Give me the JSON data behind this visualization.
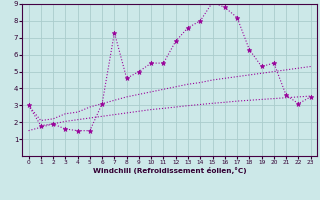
{
  "x": [
    0,
    1,
    2,
    3,
    4,
    5,
    6,
    7,
    8,
    9,
    10,
    11,
    12,
    13,
    14,
    15,
    16,
    17,
    18,
    19,
    20,
    21,
    22,
    23
  ],
  "line1_y": [
    3.0,
    1.8,
    1.9,
    1.6,
    1.5,
    1.5,
    3.1,
    7.3,
    4.6,
    5.0,
    5.5,
    5.5,
    6.8,
    7.6,
    8.0,
    9.1,
    8.8,
    8.2,
    6.3,
    5.3,
    5.5,
    3.6,
    3.1,
    3.5
  ],
  "line2_y": [
    3.0,
    2.1,
    2.2,
    2.5,
    2.6,
    2.9,
    3.1,
    3.3,
    3.5,
    3.65,
    3.8,
    3.95,
    4.1,
    4.25,
    4.35,
    4.5,
    4.6,
    4.7,
    4.8,
    4.9,
    5.0,
    5.1,
    5.2,
    5.3
  ],
  "line3_y": [
    1.5,
    1.7,
    1.9,
    2.05,
    2.15,
    2.25,
    2.35,
    2.45,
    2.55,
    2.65,
    2.75,
    2.82,
    2.9,
    2.98,
    3.05,
    3.12,
    3.18,
    3.25,
    3.3,
    3.35,
    3.4,
    3.45,
    3.5,
    3.55
  ],
  "line_color": "#990099",
  "bg_color": "#cce8e8",
  "grid_color": "#aacccc",
  "xlabel": "Windchill (Refroidissement éolien,°C)",
  "ylim": [
    0,
    9
  ],
  "xlim": [
    -0.5,
    23.5
  ],
  "yticks": [
    1,
    2,
    3,
    4,
    5,
    6,
    7,
    8,
    9
  ],
  "xticks": [
    0,
    1,
    2,
    3,
    4,
    5,
    6,
    7,
    8,
    9,
    10,
    11,
    12,
    13,
    14,
    15,
    16,
    17,
    18,
    19,
    20,
    21,
    22,
    23
  ]
}
